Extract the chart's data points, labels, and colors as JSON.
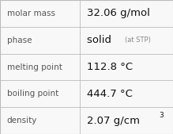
{
  "rows": [
    {
      "label": "molar mass",
      "value": "32.06 g/mol",
      "type": "normal"
    },
    {
      "label": "phase",
      "value": "solid",
      "value_suffix": "(at STP)",
      "type": "phase"
    },
    {
      "label": "melting point",
      "value": "112.8 °C",
      "type": "normal"
    },
    {
      "label": "boiling point",
      "value": "444.7 °C",
      "type": "normal"
    },
    {
      "label": "density",
      "value": "2.07 g/cm",
      "superscript": "3",
      "type": "super"
    }
  ],
  "bg_color": "#f8f8f8",
  "border_color": "#bbbbbb",
  "label_color": "#555555",
  "value_color": "#111111",
  "suffix_color": "#888888",
  "label_fontsize": 7.5,
  "value_fontsize": 9.5,
  "suffix_fontsize": 6.0,
  "super_fontsize": 6.5,
  "col_split": 0.46,
  "figwidth": 2.19,
  "figheight": 1.69,
  "dpi": 100
}
